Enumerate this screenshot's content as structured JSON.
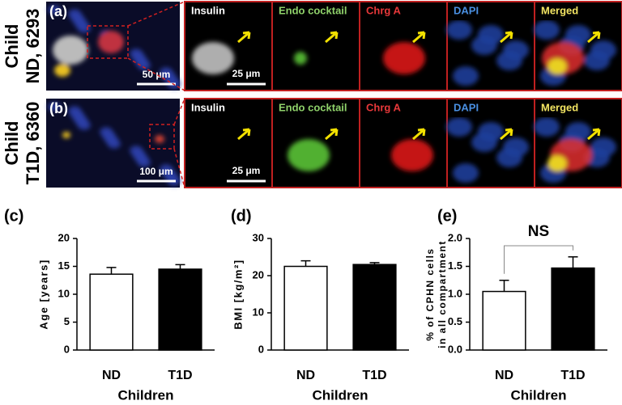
{
  "panels": [
    {
      "label": "(a)",
      "row_label": [
        "Child",
        "ND, 6293"
      ],
      "overview_scale": "50 μm",
      "zoom_scale": "25 μm"
    },
    {
      "label": "(b)",
      "row_label": [
        "Child",
        "T1D, 6360"
      ],
      "overview_scale": "100 μm",
      "zoom_scale": "25 μm"
    }
  ],
  "channels": [
    {
      "name": "Insulin",
      "color": "#ffffff"
    },
    {
      "name": "Endo cocktail",
      "color": "#8fd16a"
    },
    {
      "name": "Chrg A",
      "color": "#e8383a"
    },
    {
      "name": "DAPI",
      "color": "#4a90e2"
    },
    {
      "name": "Merged",
      "color": "#f2e462"
    }
  ],
  "chart_data": [
    {
      "type": "bar",
      "panel_label": "(c)",
      "ylabel": [
        "Age [years]"
      ],
      "xlabel": "Children",
      "categories": [
        "ND",
        "T1D"
      ],
      "values": [
        13.6,
        14.5
      ],
      "errors": [
        1.2,
        0.8
      ],
      "colors": [
        "#ffffff",
        "#000000"
      ],
      "ylim": [
        0,
        20
      ],
      "yticks": [
        0,
        5,
        10,
        15,
        20
      ]
    },
    {
      "type": "bar",
      "panel_label": "(d)",
      "ylabel": [
        "BMI [kg/m²]"
      ],
      "xlabel": "Children",
      "categories": [
        "ND",
        "T1D"
      ],
      "values": [
        22.5,
        23
      ],
      "errors": [
        1.5,
        0.5
      ],
      "colors": [
        "#ffffff",
        "#000000"
      ],
      "ylim": [
        0,
        30
      ],
      "yticks": [
        0,
        10,
        20,
        30
      ]
    },
    {
      "type": "bar",
      "panel_label": "(e)",
      "ylabel": [
        "% of CPHN cells",
        "in all compartment"
      ],
      "xlabel": "Children",
      "categories": [
        "ND",
        "T1D"
      ],
      "values": [
        1.05,
        1.47
      ],
      "errors": [
        0.2,
        0.2
      ],
      "colors": [
        "#ffffff",
        "#000000"
      ],
      "ylim": [
        0,
        2
      ],
      "yticks": [
        {
          "value": 0,
          "label": "0.0"
        },
        0.5,
        {
          "value": 1,
          "label": "1.0"
        },
        1.5,
        {
          "value": 2,
          "label": "2.0"
        }
      ],
      "annotation": "NS"
    }
  ]
}
